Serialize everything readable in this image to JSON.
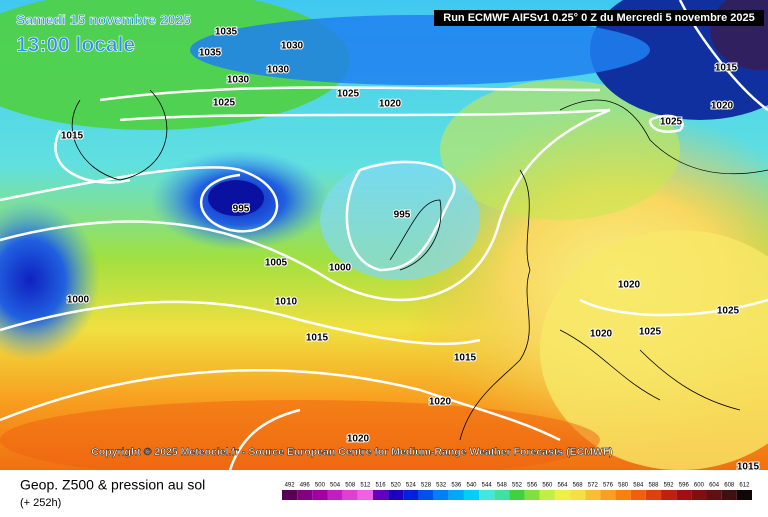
{
  "header": {
    "date": "Samedi 15 novembre 2025",
    "time": "13:00 locale",
    "run": "Run ECMWF AIFSv1 0.25° 0 Z du Mercredi 5 novembre 2025"
  },
  "isobar_labels": [
    "1035",
    "1035",
    "1030",
    "1030",
    "1030",
    "1025",
    "1025",
    "1020",
    "1015",
    "995",
    "995",
    "1005",
    "1000",
    "1000",
    "1010",
    "1015",
    "1015",
    "1020",
    "1020",
    "1015",
    "1020",
    "1025",
    "1020",
    "1020",
    "1025",
    "1025",
    "1015"
  ],
  "footer": {
    "copyright": "Copyright © 2025 Meteociel.fr - Source European Centre for Medium-Range Weather Forecasts (ECMWF)",
    "field": "Geop. Z500 & pression au sol",
    "lead": "(+ 252h)"
  },
  "color_scale": [
    492,
    496,
    500,
    504,
    508,
    512,
    516,
    520,
    524,
    528,
    532,
    536,
    540,
    544,
    548,
    552,
    556,
    560,
    564,
    568,
    572,
    576,
    580,
    584,
    588,
    592,
    596,
    600,
    604,
    608,
    612
  ]
}
